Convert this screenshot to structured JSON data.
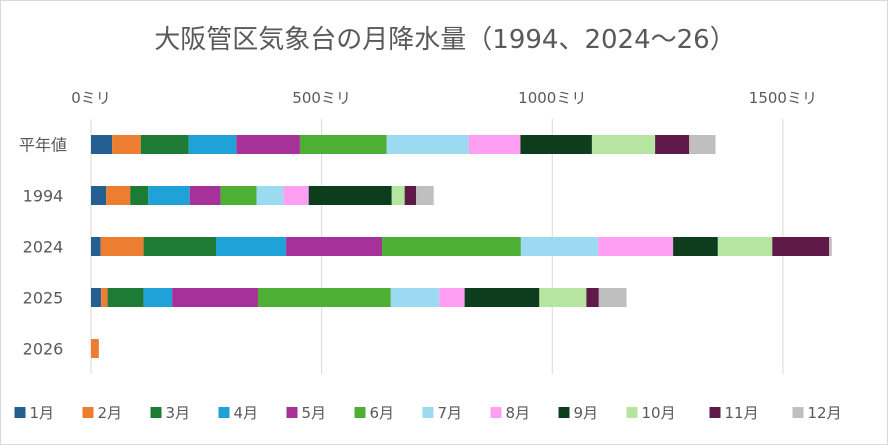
{
  "chart_data": {
    "type": "bar",
    "orientation": "horizontal",
    "stacked": true,
    "title": "大阪管区気象台の月降水量（1994、2024～26）",
    "xlabel": "",
    "ylabel": "",
    "xlim": [
      0,
      1600
    ],
    "x_ticks": [
      {
        "value": 0,
        "label": "0ミリ"
      },
      {
        "value": 500,
        "label": "500ミリ"
      },
      {
        "value": 1000,
        "label": "1000ミリ"
      },
      {
        "value": 1500,
        "label": "1500ミリ"
      }
    ],
    "x_axis_position": "top",
    "grid": true,
    "legend_position": "bottom",
    "categories": [
      "平年値",
      "1994",
      "2024",
      "2025",
      "2026"
    ],
    "series": [
      {
        "name": "1月",
        "color": "#255e91",
        "values": [
          46,
          33,
          21,
          22,
          0
        ]
      },
      {
        "name": "2月",
        "color": "#ed7d31",
        "values": [
          62,
          52,
          93,
          14,
          17
        ]
      },
      {
        "name": "3月",
        "color": "#1e7b35",
        "values": [
          104,
          39,
          157,
          78,
          0
        ]
      },
      {
        "name": "4月",
        "color": "#1ea2d8",
        "values": [
          103,
          90,
          152,
          62,
          0
        ]
      },
      {
        "name": "5月",
        "color": "#a63199",
        "values": [
          138,
          67,
          208,
          186,
          0
        ]
      },
      {
        "name": "6月",
        "color": "#4daf34",
        "values": [
          188,
          78,
          301,
          288,
          0
        ]
      },
      {
        "name": "7月",
        "color": "#9cdaf1",
        "values": [
          178,
          58,
          167,
          105,
          0
        ]
      },
      {
        "name": "8月",
        "color": "#ff9ff3",
        "values": [
          112,
          55,
          163,
          55,
          0
        ]
      },
      {
        "name": "9月",
        "color": "#0d3d1d",
        "values": [
          155,
          180,
          97,
          162,
          0
        ]
      },
      {
        "name": "10月",
        "color": "#b5e5a1",
        "values": [
          137,
          28,
          118,
          102,
          0
        ]
      },
      {
        "name": "11月",
        "color": "#601a4a",
        "values": [
          74,
          25,
          123,
          27,
          0
        ]
      },
      {
        "name": "12月",
        "color": "#bfbfbf",
        "values": [
          57,
          38,
          6,
          60,
          0
        ]
      }
    ]
  }
}
